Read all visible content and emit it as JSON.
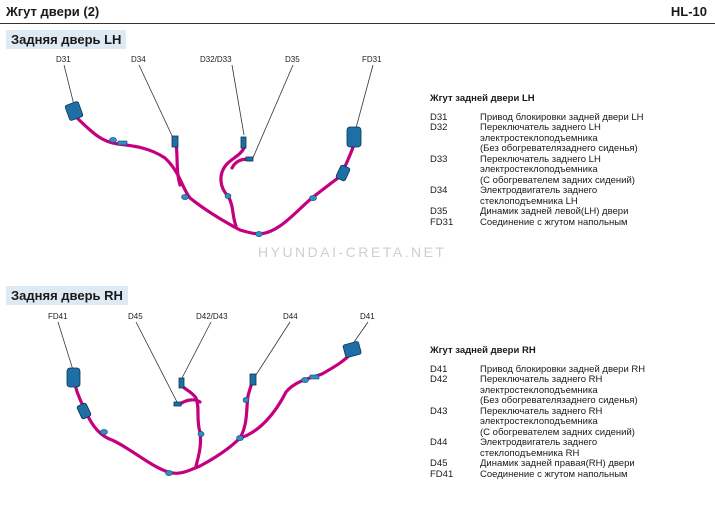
{
  "header": {
    "title": "Жгут двери (2)",
    "code": "HL-10"
  },
  "watermark": "HYUNDAI-CRETA.NET",
  "lh": {
    "section_title": "Задняя дверь LH",
    "labels": {
      "d31": "D31",
      "d34": "D34",
      "d32_d33": "D32/D33",
      "d35": "D35",
      "fd31": "FD31"
    },
    "legend_title": "Жгут задней двери LH",
    "legend": [
      {
        "code": "D31",
        "desc": "Привод блокировки задней двери LH"
      },
      {
        "code": "D32",
        "desc": "Переключатель заднего LH\nэлектростеклоподъемника\n(Без обогревателязаднего сиденья)"
      },
      {
        "code": "D33",
        "desc": "Переключатель заднего LH\nэлектростеклоподъемника\n(С обогревателем задних сидений)"
      },
      {
        "code": "D34",
        "desc": "Электродвигатель заднего\nстеклоподъемника LH"
      },
      {
        "code": "D35",
        "desc": "Динамик задней левой(LH) двери"
      },
      {
        "code": "FD31",
        "desc": "Соединение с жгутом напольным"
      }
    ]
  },
  "rh": {
    "section_title": "Задняя дверь RH",
    "labels": {
      "fd41": "FD41",
      "d45": "D45",
      "d42_d43": "D42/D43",
      "d44": "D44",
      "d41": "D41"
    },
    "legend_title": "Жгут задней двери RH",
    "legend": [
      {
        "code": "D41",
        "desc": "Привод блокировки задней двери RH"
      },
      {
        "code": "D42",
        "desc": "Переключатель заднего RH\nэлектростеклоподъемника\n(Без обогревателязаднего сиденья)"
      },
      {
        "code": "D43",
        "desc": "Переключатель заднего RH\nэлектростеклоподъемника\n(С обогревателем задних сидений)"
      },
      {
        "code": "D44",
        "desc": "Электродвигатель заднего\nстеклоподъемника RH"
      },
      {
        "code": "D45",
        "desc": "Динамик задней правая(RH) двери"
      },
      {
        "code": "FD41",
        "desc": "Соединение с жгутом напольным"
      }
    ]
  }
}
